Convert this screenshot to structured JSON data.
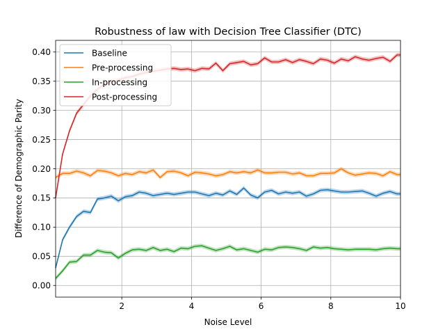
{
  "chart_data": {
    "type": "line",
    "title": "Robustness of law with Decision Tree Classifier (DTC)",
    "xlabel": "Noise Level",
    "ylabel": "Difference of Demographic Parity",
    "xlim": [
      0.1,
      10
    ],
    "ylim": [
      -0.02,
      0.42
    ],
    "xticks": [
      2,
      4,
      6,
      8,
      10
    ],
    "xtick_labels": [
      "2",
      "4",
      "6",
      "8",
      "10"
    ],
    "yticks": [
      0.0,
      0.05,
      0.1,
      0.15,
      0.2,
      0.25,
      0.3,
      0.35,
      0.4
    ],
    "ytick_labels": [
      "0.00",
      "0.05",
      "0.10",
      "0.15",
      "0.20",
      "0.25",
      "0.30",
      "0.35",
      "0.40"
    ],
    "grid": true,
    "legend_position": "top-left",
    "x": [
      0.1,
      0.3,
      0.5,
      0.7,
      0.9,
      1.1,
      1.3,
      1.5,
      1.7,
      1.9,
      2.1,
      2.3,
      2.5,
      2.7,
      2.9,
      3.1,
      3.3,
      3.5,
      3.7,
      3.9,
      4.1,
      4.3,
      4.5,
      4.7,
      4.9,
      5.1,
      5.3,
      5.5,
      5.7,
      5.9,
      6.1,
      6.3,
      6.5,
      6.7,
      6.9,
      7.1,
      7.3,
      7.5,
      7.7,
      7.9,
      8.1,
      8.3,
      8.5,
      8.7,
      8.9,
      9.1,
      9.3,
      9.5,
      9.7,
      9.9,
      10.0
    ],
    "series": [
      {
        "name": "Baseline",
        "color": "#1f77b4",
        "values": [
          0.03,
          0.078,
          0.1,
          0.118,
          0.127,
          0.125,
          0.148,
          0.15,
          0.153,
          0.145,
          0.152,
          0.154,
          0.16,
          0.158,
          0.154,
          0.156,
          0.158,
          0.156,
          0.158,
          0.16,
          0.16,
          0.157,
          0.154,
          0.158,
          0.155,
          0.162,
          0.156,
          0.167,
          0.155,
          0.15,
          0.16,
          0.163,
          0.157,
          0.16,
          0.158,
          0.16,
          0.153,
          0.157,
          0.163,
          0.164,
          0.162,
          0.16,
          0.16,
          0.161,
          0.162,
          0.158,
          0.153,
          0.158,
          0.161,
          0.157,
          0.157
        ]
      },
      {
        "name": "Pre-processing",
        "color": "#ff7f0e",
        "values": [
          0.185,
          0.192,
          0.192,
          0.196,
          0.193,
          0.188,
          0.197,
          0.196,
          0.193,
          0.188,
          0.192,
          0.19,
          0.195,
          0.193,
          0.198,
          0.185,
          0.195,
          0.196,
          0.193,
          0.188,
          0.194,
          0.193,
          0.191,
          0.188,
          0.19,
          0.195,
          0.193,
          0.195,
          0.193,
          0.198,
          0.193,
          0.193,
          0.194,
          0.194,
          0.191,
          0.193,
          0.188,
          0.188,
          0.192,
          0.192,
          0.193,
          0.2,
          0.193,
          0.189,
          0.191,
          0.193,
          0.192,
          0.188,
          0.195,
          0.19,
          0.19
        ]
      },
      {
        "name": "In-processing",
        "color": "#2ca02c",
        "values": [
          0.012,
          0.025,
          0.04,
          0.041,
          0.052,
          0.052,
          0.06,
          0.057,
          0.056,
          0.047,
          0.055,
          0.061,
          0.062,
          0.06,
          0.065,
          0.06,
          0.062,
          0.058,
          0.064,
          0.063,
          0.067,
          0.068,
          0.064,
          0.06,
          0.063,
          0.067,
          0.061,
          0.063,
          0.06,
          0.057,
          0.062,
          0.061,
          0.065,
          0.066,
          0.065,
          0.063,
          0.06,
          0.066,
          0.064,
          0.065,
          0.063,
          0.062,
          0.061,
          0.062,
          0.062,
          0.062,
          0.061,
          0.063,
          0.064,
          0.063,
          0.063
        ]
      },
      {
        "name": "Post-processing",
        "color": "#d62728",
        "values": [
          0.15,
          0.225,
          0.265,
          0.295,
          0.31,
          0.325,
          0.336,
          0.345,
          0.35,
          0.352,
          0.356,
          0.358,
          0.362,
          0.365,
          0.367,
          0.369,
          0.371,
          0.372,
          0.37,
          0.371,
          0.368,
          0.372,
          0.371,
          0.381,
          0.368,
          0.38,
          0.382,
          0.384,
          0.378,
          0.38,
          0.39,
          0.383,
          0.383,
          0.387,
          0.382,
          0.387,
          0.384,
          0.38,
          0.388,
          0.386,
          0.381,
          0.388,
          0.385,
          0.392,
          0.388,
          0.386,
          0.389,
          0.391,
          0.384,
          0.395,
          0.395
        ]
      }
    ]
  }
}
